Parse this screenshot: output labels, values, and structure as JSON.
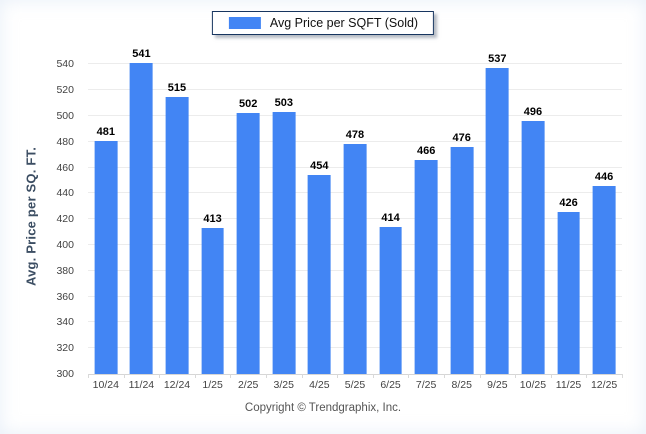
{
  "legend": {
    "label": "Avg Price per SQFT (Sold)"
  },
  "footer": {
    "copyright": "Copyright © Trendgraphix, Inc."
  },
  "colors": {
    "bar": "#4285F4",
    "gridline": "#ECECEC",
    "axis_line": "#D6D6D6",
    "tick_text": "#424242",
    "value_label_text": "#000000",
    "y_title_text": "#3C4E63",
    "legend_border": "#17355F",
    "footer_text": "#555555",
    "background": "#FFFFFF"
  },
  "chart_data": {
    "type": "bar",
    "title": "",
    "xlabel": "",
    "ylabel": "Avg. Price per SQ. FT.",
    "series_name": "Avg Price per SQFT (Sold)",
    "categories": [
      "10/24",
      "11/24",
      "12/24",
      "1/25",
      "2/25",
      "3/25",
      "4/25",
      "5/25",
      "6/25",
      "7/25",
      "8/25",
      "9/25",
      "10/25",
      "11/25",
      "12/25"
    ],
    "values": [
      481,
      541,
      515,
      413,
      502,
      503,
      454,
      478,
      414,
      466,
      476,
      537,
      496,
      426,
      446
    ],
    "ylim": [
      300,
      540
    ],
    "ytick_step": 20,
    "ylim_draw": [
      300,
      545
    ],
    "grid": "horizontal",
    "value_labels": true,
    "legend_position": "top-center"
  }
}
